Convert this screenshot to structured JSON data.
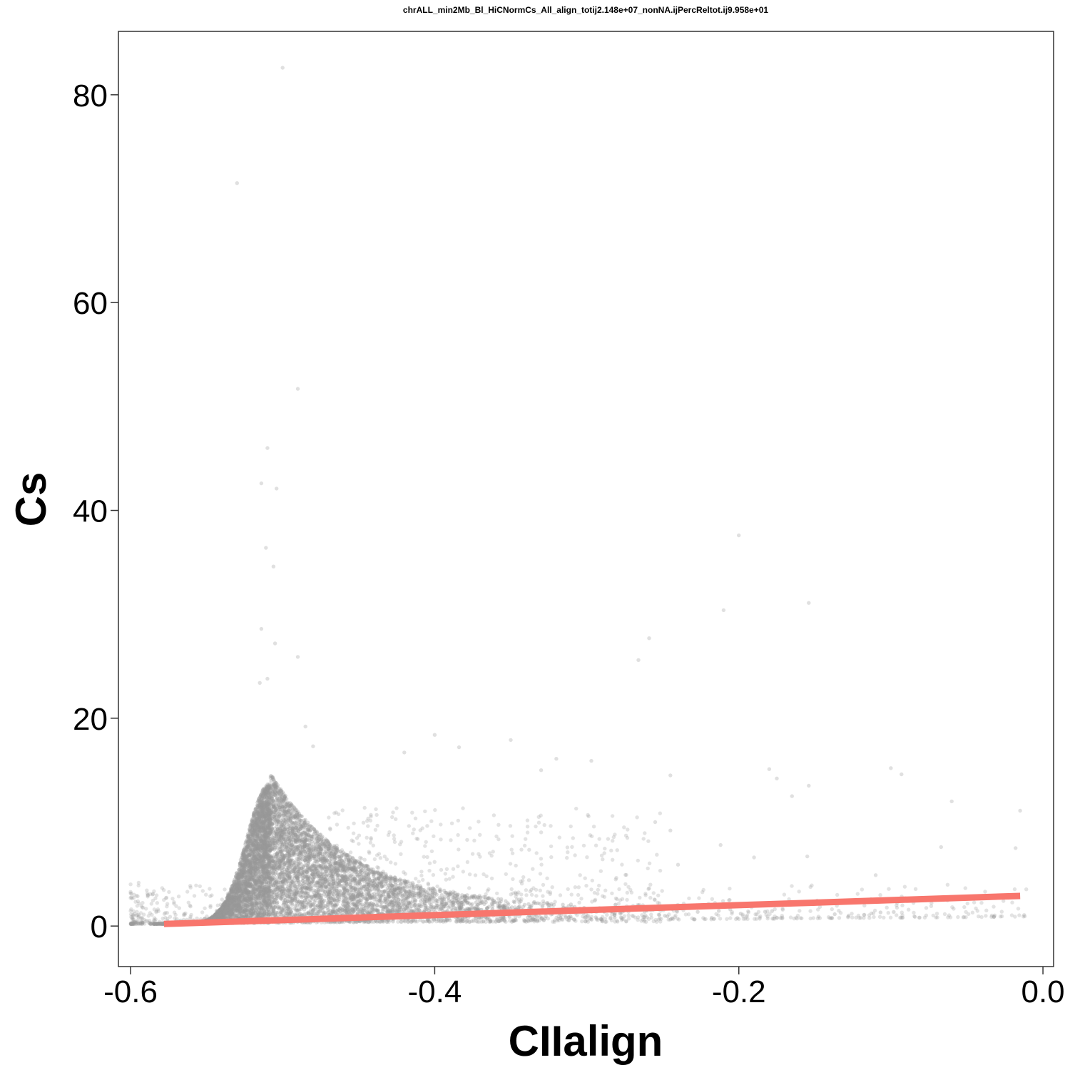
{
  "chart_data": {
    "type": "scatter",
    "title": "chrALL_min2Mb_Bl_HiCNormCs_All_align_totij2.148e+07_nonNA.ijPercReltot.ij9.958e+01",
    "xlabel": "CIIalign",
    "ylabel": "Cs",
    "xlim": [
      -0.608,
      0.007
    ],
    "ylim": [
      -3.9,
      86.1
    ],
    "xticks": [
      -0.6,
      -0.4,
      -0.2,
      0.0
    ],
    "xtick_labels": [
      "-0.6",
      "-0.4",
      "-0.2",
      "0.0"
    ],
    "yticks": [
      0,
      20,
      40,
      60,
      80
    ],
    "ytick_labels": [
      "0",
      "20",
      "40",
      "60",
      "80"
    ],
    "grid": false,
    "point_color": "#999999",
    "fit_color": "#F8766D",
    "outliers": [
      {
        "x": -0.5,
        "y": 82.6
      },
      {
        "x": -0.53,
        "y": 71.5
      },
      {
        "x": -0.49,
        "y": 51.7
      },
      {
        "x": -0.51,
        "y": 46.0
      },
      {
        "x": -0.514,
        "y": 42.6
      },
      {
        "x": -0.504,
        "y": 42.1
      },
      {
        "x": -0.511,
        "y": 36.4
      },
      {
        "x": -0.506,
        "y": 34.6
      },
      {
        "x": -0.514,
        "y": 28.6
      },
      {
        "x": -0.2,
        "y": 37.6
      },
      {
        "x": -0.21,
        "y": 30.4
      },
      {
        "x": -0.154,
        "y": 31.1
      },
      {
        "x": -0.259,
        "y": 27.7
      },
      {
        "x": -0.266,
        "y": 25.6
      },
      {
        "x": -0.49,
        "y": 25.9
      },
      {
        "x": -0.505,
        "y": 27.2
      },
      {
        "x": -0.51,
        "y": 23.8
      },
      {
        "x": -0.515,
        "y": 23.4
      },
      {
        "x": -0.4,
        "y": 18.4
      },
      {
        "x": -0.48,
        "y": 17.3
      },
      {
        "x": -0.384,
        "y": 17.2
      },
      {
        "x": -0.35,
        "y": 17.9
      },
      {
        "x": -0.32,
        "y": 16.1
      },
      {
        "x": -0.297,
        "y": 15.9
      },
      {
        "x": -0.1,
        "y": 15.2
      },
      {
        "x": -0.18,
        "y": 15.1
      },
      {
        "x": -0.015,
        "y": 11.1
      },
      {
        "x": -0.06,
        "y": 12.0
      },
      {
        "x": -0.154,
        "y": 13.5
      },
      {
        "x": -0.42,
        "y": 16.7
      },
      {
        "x": -0.485,
        "y": 19.2
      },
      {
        "x": -0.245,
        "y": 14.5
      },
      {
        "x": -0.33,
        "y": 15.0
      },
      {
        "x": -0.093,
        "y": 14.6
      },
      {
        "x": -0.175,
        "y": 14.2
      },
      {
        "x": -0.255,
        "y": 10.0
      },
      {
        "x": -0.19,
        "y": 6.6
      },
      {
        "x": -0.212,
        "y": 7.8
      },
      {
        "x": -0.067,
        "y": 7.6
      },
      {
        "x": -0.018,
        "y": 7.5
      },
      {
        "x": -0.245,
        "y": 9.2
      },
      {
        "x": -0.11,
        "y": 4.9
      },
      {
        "x": -0.165,
        "y": 12.5
      },
      {
        "x": -0.24,
        "y": 5.9
      },
      {
        "x": -0.155,
        "y": 6.7
      }
    ],
    "series": [
      {
        "type": "fit",
        "x": [
          -0.578,
          -0.015
        ],
        "y": [
          0.2,
          2.9
        ]
      }
    ]
  }
}
